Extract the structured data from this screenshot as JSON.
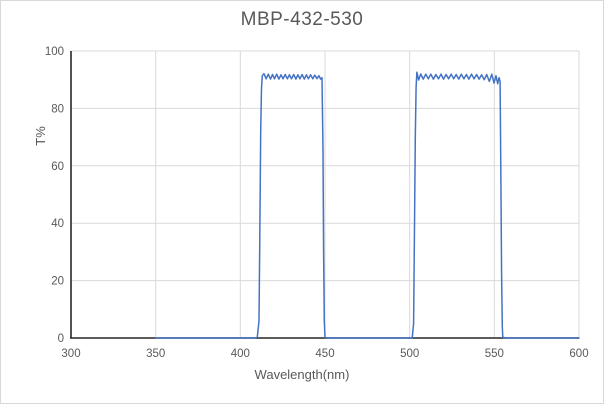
{
  "chart_data": {
    "type": "line",
    "title": "MBP-432-530",
    "xlabel": "Wavelength(nm)",
    "ylabel": "T%",
    "xlim": [
      300,
      600
    ],
    "ylim": [
      0,
      100
    ],
    "xticks": [
      300,
      350,
      400,
      450,
      500,
      550,
      600
    ],
    "yticks": [
      0,
      20,
      40,
      60,
      80,
      100
    ],
    "grid": true,
    "legend": "none",
    "description": "Dual bandpass filter transmission: passband 1 ~412-450 nm at ~91% T, passband 2 ~503-555 nm at ~91% T, 0% T elsewhere; data plotted from 350 to 600 nm",
    "colors": {
      "line": "#4472C4",
      "grid": "#d9d9d9",
      "axis": "#262626",
      "text": "#595959",
      "border": "#d9d9d9",
      "background": "#ffffff"
    },
    "series": [
      {
        "points": [
          [
            350,
            0
          ],
          [
            355,
            0
          ],
          [
            360,
            0
          ],
          [
            365,
            0
          ],
          [
            370,
            0
          ],
          [
            375,
            0
          ],
          [
            380,
            0
          ],
          [
            385,
            0
          ],
          [
            390,
            0
          ],
          [
            395,
            0
          ],
          [
            400,
            0
          ],
          [
            405,
            0
          ],
          [
            408,
            0
          ],
          [
            410,
            0.3
          ],
          [
            411,
            6
          ],
          [
            411.5,
            35
          ],
          [
            412,
            72
          ],
          [
            412.5,
            87
          ],
          [
            413,
            91.4
          ],
          [
            414,
            92.1
          ],
          [
            415.2,
            90.3
          ],
          [
            416.5,
            91.9
          ],
          [
            417.8,
            90.2
          ],
          [
            419,
            91.8
          ],
          [
            420.2,
            90.3
          ],
          [
            421.5,
            91.9
          ],
          [
            422.8,
            90.2
          ],
          [
            424,
            91.7
          ],
          [
            425.2,
            90.3
          ],
          [
            426.5,
            91.8
          ],
          [
            427.8,
            90.3
          ],
          [
            429,
            91.7
          ],
          [
            430.2,
            90.3
          ],
          [
            431.5,
            91.8
          ],
          [
            432.8,
            90.2
          ],
          [
            434,
            91.7
          ],
          [
            435.2,
            90.3
          ],
          [
            436.5,
            91.8
          ],
          [
            437.8,
            90.2
          ],
          [
            439,
            91.7
          ],
          [
            440.2,
            90.3
          ],
          [
            441.5,
            91.7
          ],
          [
            442.8,
            90.3
          ],
          [
            444,
            91.6
          ],
          [
            445.2,
            90.4
          ],
          [
            446.4,
            91.4
          ],
          [
            447.4,
            90.2
          ],
          [
            448.2,
            90.7
          ],
          [
            448.8,
            65
          ],
          [
            449.2,
            30
          ],
          [
            449.6,
            6
          ],
          [
            450,
            0.3
          ],
          [
            452,
            0
          ],
          [
            455,
            0
          ],
          [
            460,
            0
          ],
          [
            465,
            0
          ],
          [
            470,
            0
          ],
          [
            475,
            0
          ],
          [
            480,
            0
          ],
          [
            485,
            0
          ],
          [
            490,
            0
          ],
          [
            495,
            0
          ],
          [
            500,
            0
          ],
          [
            501.5,
            0
          ],
          [
            502.3,
            5
          ],
          [
            502.8,
            35
          ],
          [
            503.3,
            70
          ],
          [
            503.8,
            87.5
          ],
          [
            504.3,
            92.6
          ],
          [
            505.3,
            89.9
          ],
          [
            506.5,
            92.0
          ],
          [
            508,
            90.2
          ],
          [
            509.5,
            91.9
          ],
          [
            511,
            90.3
          ],
          [
            512.5,
            91.9
          ],
          [
            514,
            90.2
          ],
          [
            515.5,
            91.8
          ],
          [
            517,
            90.3
          ],
          [
            518.5,
            91.9
          ],
          [
            520,
            90.2
          ],
          [
            521.5,
            91.8
          ],
          [
            523,
            90.3
          ],
          [
            524.5,
            91.9
          ],
          [
            526,
            90.3
          ],
          [
            527.5,
            91.8
          ],
          [
            529,
            90.2
          ],
          [
            530.5,
            91.9
          ],
          [
            532,
            90.3
          ],
          [
            533.5,
            91.8
          ],
          [
            535,
            90.2
          ],
          [
            536.5,
            91.9
          ],
          [
            538,
            90.3
          ],
          [
            539.5,
            91.8
          ],
          [
            541,
            90.2
          ],
          [
            542.5,
            91.7
          ],
          [
            544,
            90.0
          ],
          [
            545.5,
            91.8
          ],
          [
            547,
            89.4
          ],
          [
            548.5,
            91.9
          ],
          [
            549.8,
            88.8
          ],
          [
            551,
            91.4
          ],
          [
            552,
            88.6
          ],
          [
            552.8,
            90.7
          ],
          [
            553.4,
            89.3
          ],
          [
            553.9,
            55
          ],
          [
            554.3,
            22
          ],
          [
            554.7,
            4
          ],
          [
            555,
            0.2
          ],
          [
            557,
            0
          ],
          [
            560,
            0
          ],
          [
            565,
            0
          ],
          [
            570,
            0
          ],
          [
            575,
            0
          ],
          [
            580,
            0
          ],
          [
            585,
            0
          ],
          [
            590,
            0
          ],
          [
            595,
            0
          ],
          [
            600,
            0
          ]
        ]
      }
    ]
  }
}
